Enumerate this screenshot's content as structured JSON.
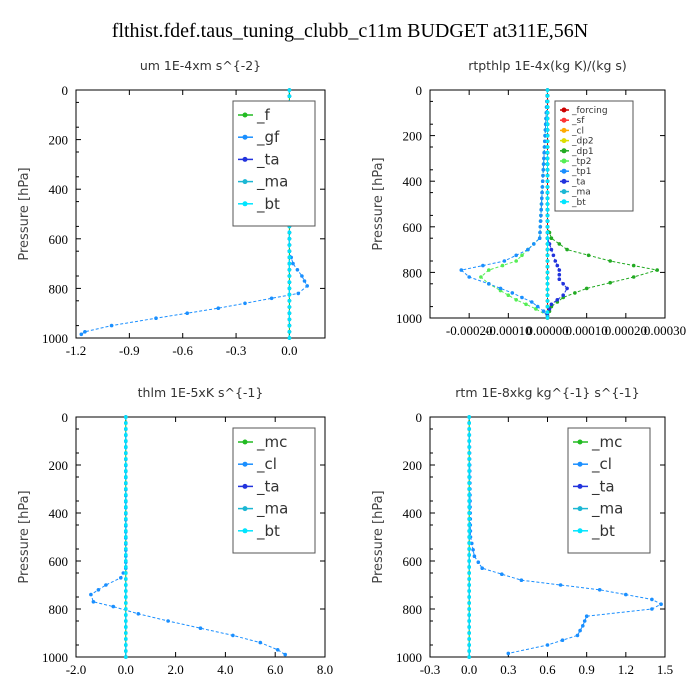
{
  "title": "flthist.fdef.taus_tuning_clubb_c11m  BUDGET at311E,56N",
  "chart_data": [
    {
      "type": "line",
      "title": "um   1E-4xm  s^{-2}",
      "ylabel": "Pressure  [hPa]",
      "xlim": [
        -1.2,
        0.2
      ],
      "ylim": [
        1000,
        0
      ],
      "xticks": [
        "-1.2",
        "-0.9",
        "-0.6",
        "-0.3",
        "0.0"
      ],
      "xtick_values": [
        -1.2,
        -0.9,
        -0.6,
        -0.3,
        0.0
      ],
      "yticks": [
        "0",
        "200",
        "400",
        "600",
        "800",
        "1000"
      ],
      "ytick_values": [
        0,
        200,
        400,
        600,
        800,
        1000
      ],
      "legend_style": "big",
      "series": [
        {
          "name": "_f",
          "color": "#22bb22",
          "y": [
            0,
            1000
          ],
          "x": [
            0.0,
            0.0
          ]
        },
        {
          "name": "_gf",
          "color": "#1a8fff",
          "y": [
            0,
            650,
            700,
            750,
            790,
            820,
            840,
            880,
            920,
            950,
            975,
            985
          ],
          "x": [
            0.0,
            0.0,
            0.02,
            0.07,
            0.1,
            0.05,
            -0.1,
            -0.4,
            -0.75,
            -1.0,
            -1.15,
            -1.17
          ]
        },
        {
          "name": "_ta",
          "color": "#2233dd",
          "y": [
            0,
            1000
          ],
          "x": [
            0.0,
            0.0
          ]
        },
        {
          "name": "_ma",
          "color": "#1bb7d4",
          "y": [
            0,
            1000
          ],
          "x": [
            0.0,
            0.0
          ]
        },
        {
          "name": "_bt",
          "color": "#00e5ff",
          "y": [
            0,
            1000
          ],
          "x": [
            0.0,
            0.0
          ]
        }
      ]
    },
    {
      "type": "line",
      "title": "rtpthlp   1E-4x(kg K)/(kg s)",
      "ylabel": "Pressure  [hPa]",
      "xlim": [
        -0.0003,
        0.0003
      ],
      "ylim": [
        1000,
        0
      ],
      "xticks": [
        "-0.00020",
        "-0.00010",
        "0.00000",
        "0.00010",
        "0.00020",
        "0.00030"
      ],
      "xtick_values": [
        -0.0002,
        -0.0001,
        0.0,
        0.0001,
        0.0002,
        0.0003
      ],
      "yticks": [
        "0",
        "200",
        "400",
        "600",
        "800",
        "1000"
      ],
      "ytick_values": [
        0,
        200,
        400,
        600,
        800,
        1000
      ],
      "legend_style": "small",
      "series": [
        {
          "name": "_forcing",
          "color": "#cc0000",
          "y": [
            0,
            1000
          ],
          "x": [
            0.0,
            0.0
          ]
        },
        {
          "name": "_sf",
          "color": "#ff3333",
          "y": [
            0,
            1000
          ],
          "x": [
            0.0,
            0.0
          ]
        },
        {
          "name": "_cl",
          "color": "#ffaa00",
          "y": [
            0,
            1000
          ],
          "x": [
            0.0,
            0.0
          ]
        },
        {
          "name": "_dp2",
          "color": "#dddd00",
          "y": [
            0,
            1000
          ],
          "x": [
            0.0,
            0.0
          ]
        },
        {
          "name": "_dp1",
          "color": "#22aa22",
          "y": [
            0,
            600,
            650,
            700,
            750,
            790,
            820,
            870,
            910,
            950,
            990
          ],
          "x": [
            0.0,
            0.0,
            1e-05,
            5e-05,
            0.00016,
            0.00028,
            0.00022,
            0.0001,
            4e-05,
            1e-05,
            0.0
          ]
        },
        {
          "name": "_tp2",
          "color": "#55ee55",
          "y": [
            0,
            650,
            700,
            750,
            790,
            820,
            850,
            880,
            920,
            960,
            990
          ],
          "x": [
            0.0,
            -2e-05,
            -5e-05,
            -8e-05,
            -0.00015,
            -0.00017,
            -0.00015,
            -0.00012,
            -8e-05,
            -3e-05,
            0.0
          ]
        },
        {
          "name": "_tp1",
          "color": "#1a8fff",
          "y": [
            0,
            650,
            700,
            750,
            790,
            820,
            850,
            890,
            930,
            970,
            995
          ],
          "x": [
            0.0,
            -2e-05,
            -5e-05,
            -0.00011,
            -0.00022,
            -0.0002,
            -0.00015,
            -9e-05,
            -4e-05,
            -1e-05,
            0.0
          ]
        },
        {
          "name": "_ta",
          "color": "#2233dd",
          "y": [
            0,
            650,
            700,
            750,
            790,
            830,
            870,
            900,
            940,
            980
          ],
          "x": [
            0.0,
            0.0,
            1e-05,
            2e-05,
            3e-05,
            3e-05,
            5e-05,
            4e-05,
            1e-05,
            0.0
          ]
        },
        {
          "name": "_ma",
          "color": "#1bb7d4",
          "y": [
            0,
            1000
          ],
          "x": [
            0.0,
            0.0
          ]
        },
        {
          "name": "_bt",
          "color": "#00e5ff",
          "y": [
            0,
            1000
          ],
          "x": [
            0.0,
            0.0
          ]
        }
      ]
    },
    {
      "type": "line",
      "title": "thlm   1E-5xK  s^{-1}",
      "ylabel": "Pressure  [hPa]",
      "xlim": [
        -2.0,
        8.0
      ],
      "ylim": [
        1000,
        0
      ],
      "xticks": [
        "-2.0",
        "0.0",
        "2.0",
        "4.0",
        "6.0",
        "8.0"
      ],
      "xtick_values": [
        -2.0,
        0.0,
        2.0,
        4.0,
        6.0,
        8.0
      ],
      "yticks": [
        "0",
        "200",
        "400",
        "600",
        "800",
        "1000"
      ],
      "ytick_values": [
        0,
        200,
        400,
        600,
        800,
        1000
      ],
      "legend_style": "big",
      "series": [
        {
          "name": "_mc",
          "color": "#22bb22",
          "y": [
            0,
            1000
          ],
          "x": [
            0.0,
            0.0
          ]
        },
        {
          "name": "_cl",
          "color": "#1a8fff",
          "y": [
            0,
            630,
            670,
            700,
            740,
            770,
            790,
            820,
            850,
            880,
            910,
            940,
            970,
            990
          ],
          "x": [
            0.0,
            0.0,
            -0.2,
            -0.8,
            -1.4,
            -1.3,
            -0.5,
            0.5,
            1.7,
            3.0,
            4.3,
            5.4,
            6.1,
            6.4
          ]
        },
        {
          "name": "_ta",
          "color": "#2233dd",
          "y": [
            0,
            1000
          ],
          "x": [
            0.0,
            0.0
          ]
        },
        {
          "name": "_ma",
          "color": "#1bb7d4",
          "y": [
            0,
            1000
          ],
          "x": [
            0.0,
            0.0
          ]
        },
        {
          "name": "_bt",
          "color": "#00e5ff",
          "y": [
            0,
            1000
          ],
          "x": [
            0.0,
            0.0
          ]
        }
      ]
    },
    {
      "type": "line",
      "title": "rtm   1E-8xkg  kg^{-1}  s^{-1}",
      "ylabel": "Pressure  [hPa]",
      "xlim": [
        -0.3,
        1.5
      ],
      "ylim": [
        1000,
        0
      ],
      "xticks": [
        "-0.3",
        "0.0",
        "0.3",
        "0.6",
        "0.9",
        "1.2",
        "1.5"
      ],
      "xtick_values": [
        -0.3,
        0.0,
        0.3,
        0.6,
        0.9,
        1.2,
        1.5
      ],
      "yticks": [
        "0",
        "200",
        "400",
        "600",
        "800",
        "1000"
      ],
      "ytick_values": [
        0,
        200,
        400,
        600,
        800,
        1000
      ],
      "legend_style": "big",
      "series": [
        {
          "name": "_mc",
          "color": "#22bb22",
          "y": [
            0,
            1000
          ],
          "x": [
            0.0,
            0.0
          ]
        },
        {
          "name": "_cl",
          "color": "#1a8fff",
          "y": [
            0,
            500,
            580,
            630,
            680,
            720,
            760,
            780,
            800,
            830,
            870,
            910,
            950,
            985
          ],
          "x": [
            0.0,
            0.01,
            0.04,
            0.1,
            0.4,
            1.0,
            1.4,
            1.47,
            1.4,
            0.9,
            0.87,
            0.83,
            0.6,
            0.3
          ]
        },
        {
          "name": "_ta",
          "color": "#2233dd",
          "y": [
            0,
            1000
          ],
          "x": [
            0.0,
            0.0
          ]
        },
        {
          "name": "_ma",
          "color": "#1bb7d4",
          "y": [
            0,
            1000
          ],
          "x": [
            0.0,
            0.0
          ]
        },
        {
          "name": "_bt",
          "color": "#00e5ff",
          "y": [
            0,
            1000
          ],
          "x": [
            0.0,
            0.0
          ]
        }
      ]
    }
  ]
}
